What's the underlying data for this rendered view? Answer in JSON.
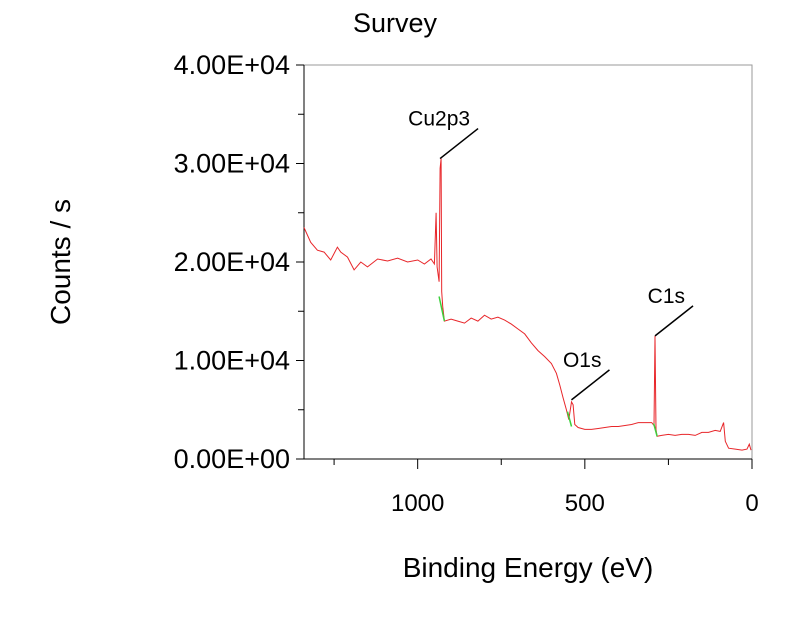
{
  "chart_data": {
    "type": "line",
    "title": "Survey",
    "xlabel": "Binding Energy (eV)",
    "ylabel": "Counts / s",
    "xlim": [
      1340,
      0
    ],
    "ylim": [
      0,
      40000
    ],
    "x_ticks": [
      1000,
      500,
      0
    ],
    "x_tick_labels": [
      "1000",
      "500",
      "0"
    ],
    "y_ticks": [
      0,
      10000,
      20000,
      30000,
      40000
    ],
    "y_tick_labels": [
      "0.00E+00",
      "1.00E+04",
      "2.00E+04",
      "3.00E+04",
      "4.00E+04"
    ],
    "grid": false,
    "colors": {
      "spectrum": "#e8262a",
      "background_fit": "#3ccf3c",
      "axes": "#000000",
      "frame": "#9a9a9a"
    },
    "series": [
      {
        "values": [
          [
            1340,
            23500
          ],
          [
            1320,
            22000
          ],
          [
            1300,
            21200
          ],
          [
            1280,
            21000
          ],
          [
            1260,
            20200
          ],
          [
            1240,
            21500
          ],
          [
            1230,
            21000
          ],
          [
            1210,
            20500
          ],
          [
            1190,
            19200
          ],
          [
            1170,
            20000
          ],
          [
            1150,
            19500
          ],
          [
            1120,
            20300
          ],
          [
            1090,
            20100
          ],
          [
            1060,
            20400
          ],
          [
            1030,
            20000
          ],
          [
            1000,
            20200
          ],
          [
            980,
            19800
          ],
          [
            960,
            20300
          ],
          [
            950,
            19800
          ],
          [
            945,
            25000
          ],
          [
            942,
            19500
          ],
          [
            936,
            18000
          ],
          [
            933,
            29500
          ],
          [
            930,
            30500
          ],
          [
            928,
            17000
          ],
          [
            925,
            15500
          ],
          [
            920,
            14000
          ],
          [
            900,
            14200
          ],
          [
            880,
            14000
          ],
          [
            860,
            13800
          ],
          [
            840,
            14300
          ],
          [
            820,
            14000
          ],
          [
            800,
            14600
          ],
          [
            780,
            14200
          ],
          [
            760,
            14400
          ],
          [
            740,
            14100
          ],
          [
            720,
            13700
          ],
          [
            700,
            13200
          ],
          [
            680,
            12700
          ],
          [
            660,
            11800
          ],
          [
            640,
            11000
          ],
          [
            620,
            10400
          ],
          [
            600,
            9700
          ],
          [
            585,
            8700
          ],
          [
            575,
            7500
          ],
          [
            565,
            6200
          ],
          [
            555,
            5000
          ],
          [
            548,
            4000
          ],
          [
            540,
            5800
          ],
          [
            535,
            5500
          ],
          [
            530,
            3500
          ],
          [
            520,
            3200
          ],
          [
            500,
            3000
          ],
          [
            480,
            3000
          ],
          [
            460,
            3100
          ],
          [
            440,
            3200
          ],
          [
            420,
            3300
          ],
          [
            400,
            3300
          ],
          [
            380,
            3400
          ],
          [
            360,
            3500
          ],
          [
            340,
            3700
          ],
          [
            320,
            3700
          ],
          [
            300,
            3700
          ],
          [
            293,
            3400
          ],
          [
            290,
            12500
          ],
          [
            287,
            3000
          ],
          [
            284,
            2300
          ],
          [
            270,
            2400
          ],
          [
            250,
            2500
          ],
          [
            230,
            2400
          ],
          [
            210,
            2500
          ],
          [
            190,
            2500
          ],
          [
            170,
            2400
          ],
          [
            150,
            2700
          ],
          [
            130,
            2700
          ],
          [
            110,
            2900
          ],
          [
            95,
            2800
          ],
          [
            85,
            3700
          ],
          [
            80,
            1800
          ],
          [
            70,
            1100
          ],
          [
            50,
            1000
          ],
          [
            30,
            900
          ],
          [
            15,
            1000
          ],
          [
            8,
            1500
          ],
          [
            3,
            900
          ]
        ]
      }
    ],
    "background_segments": [
      [
        [
          936,
          16500
        ],
        [
          920,
          14000
        ]
      ],
      [
        [
          552,
          4800
        ],
        [
          540,
          3300
        ]
      ],
      [
        [
          294,
          3600
        ],
        [
          284,
          2300
        ]
      ]
    ],
    "annotations": [
      {
        "text": "Cu2p3",
        "x": 933,
        "y": 30500
      },
      {
        "text": "O1s",
        "x": 540,
        "y": 6000
      },
      {
        "text": "C1s",
        "x": 290,
        "y": 12500
      }
    ]
  }
}
